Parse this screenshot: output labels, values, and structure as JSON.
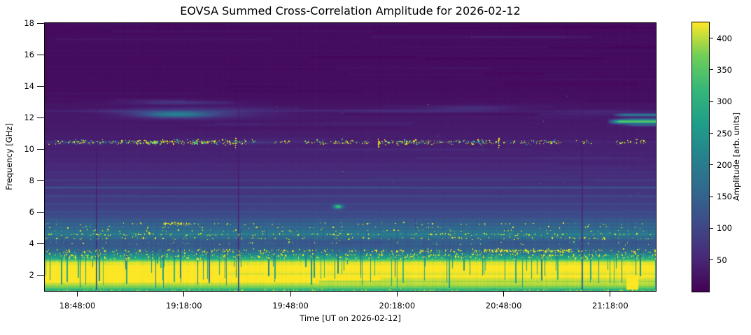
{
  "chart_data": {
    "type": "heatmap",
    "title": "EOVSA Summed Cross-Correlation Amplitude for 2026-02-12",
    "xlabel": "Time [UT on 2026-02-12]",
    "ylabel": "Frequency [GHz]",
    "x_axis": {
      "start": "18:38:50",
      "end": "21:30:50",
      "tick_labels": [
        "18:48:00",
        "19:18:00",
        "19:48:00",
        "20:18:00",
        "20:48:00",
        "21:18:00"
      ]
    },
    "y_axis": {
      "min": 1,
      "max": 18,
      "ticks": [
        2,
        4,
        6,
        8,
        10,
        12,
        14,
        16,
        18
      ]
    },
    "colorbar": {
      "label": "Amplitude [arb. units]",
      "vmin": 0,
      "vmax": 425,
      "ticks": [
        50,
        100,
        150,
        200,
        250,
        300,
        350,
        400
      ],
      "colormap": "viridis",
      "stops": [
        [
          0,
          "#440154"
        ],
        [
          0.125,
          "#482878"
        ],
        [
          0.25,
          "#3e4a89"
        ],
        [
          0.375,
          "#31688e"
        ],
        [
          0.5,
          "#26828e"
        ],
        [
          0.625,
          "#1f9e89"
        ],
        [
          0.75,
          "#35b779"
        ],
        [
          0.875,
          "#6ece58"
        ],
        [
          1,
          "#fde725"
        ]
      ]
    },
    "spectrogram": {
      "seed": 1234,
      "dot_seed": 42,
      "freq_profile": [
        [
          18,
          15
        ],
        [
          14,
          17
        ],
        [
          13.3,
          20
        ],
        [
          12.8,
          26
        ],
        [
          12.3,
          30
        ],
        [
          11.8,
          32
        ],
        [
          11.2,
          35
        ],
        [
          10.6,
          40
        ],
        [
          10,
          44
        ],
        [
          9.4,
          48
        ],
        [
          8.8,
          53
        ],
        [
          8.3,
          58
        ],
        [
          7.9,
          64
        ],
        [
          7.5,
          70
        ],
        [
          7.1,
          78
        ],
        [
          6.7,
          85
        ],
        [
          6.3,
          93
        ],
        [
          5.95,
          103
        ],
        [
          5.65,
          113
        ],
        [
          5.4,
          124
        ],
        [
          5.15,
          142
        ],
        [
          4.9,
          160
        ],
        [
          4.7,
          175
        ],
        [
          4.55,
          185
        ],
        [
          4.45,
          165
        ],
        [
          4.3,
          142
        ],
        [
          4.1,
          130
        ],
        [
          3.95,
          128
        ],
        [
          3.8,
          133
        ],
        [
          3.65,
          148
        ],
        [
          3.5,
          175
        ],
        [
          3.38,
          205
        ],
        [
          3.25,
          235
        ],
        [
          3.1,
          275
        ],
        [
          2.98,
          330
        ],
        [
          2.9,
          380
        ],
        [
          2.8,
          418
        ],
        [
          2.6,
          428
        ],
        [
          1.35,
          428
        ],
        [
          1.2,
          405
        ],
        [
          1.08,
          385
        ],
        [
          1,
          370
        ]
      ],
      "noise": {
        "row": [
          [
            6,
            2.5
          ],
          [
            4.6,
            5
          ],
          [
            3.8,
            6
          ],
          [
            3.3,
            9
          ],
          [
            2.95,
            13
          ],
          [
            2.6,
            10
          ],
          [
            0,
            3
          ]
        ],
        "pix": [
          [
            6,
            2.5
          ],
          [
            3.0,
            5
          ],
          [
            2.8,
            9
          ],
          [
            0,
            2
          ]
        ],
        "col": [
          [
            5.6,
            1.2
          ],
          [
            4.6,
            5
          ],
          [
            3.0,
            7
          ],
          [
            2.6,
            6
          ],
          [
            0,
            4
          ]
        ]
      },
      "row_streaks": {
        "seed": 9,
        "count": 62
      },
      "stripes": [
        {
          "f": 12.95,
          "x0": 0.17,
          "x1": 0.31,
          "amp": 14,
          "sig": 1.2
        },
        {
          "f": 12.42,
          "x0": 0.0,
          "x1": 0.74,
          "amp": 15,
          "sig": 1.0
        },
        {
          "f": 12.42,
          "x0": 0.74,
          "x1": 1.0,
          "amp": 8,
          "sig": 1.0
        },
        {
          "f": 10.45,
          "x0": 0.0,
          "x1": 1.0,
          "amp": 10,
          "sig": 0.9
        },
        {
          "f": 9.0,
          "x0": 0.0,
          "x1": 1.0,
          "amp": 8,
          "sig": 1.0
        },
        {
          "f": 8.55,
          "x0": 0.0,
          "x1": 1.0,
          "amp": 13,
          "sig": 1.0
        },
        {
          "f": 8.3,
          "x0": 0.0,
          "x1": 1.0,
          "amp": 9,
          "sig": 1.0
        },
        {
          "f": 8.02,
          "x0": 0.0,
          "x1": 1.0,
          "amp": 26,
          "sig": 1.1
        },
        {
          "f": 7.56,
          "x0": 0.0,
          "x1": 1.0,
          "amp": 52,
          "sig": 1.0
        },
        {
          "f": 7.02,
          "x0": 0.0,
          "x1": 1.0,
          "amp": 26,
          "sig": 1.0
        },
        {
          "f": 6.52,
          "x0": 0.0,
          "x1": 1.0,
          "amp": 16,
          "sig": 1.0
        },
        {
          "f": 6.02,
          "x0": 0.0,
          "x1": 1.0,
          "amp": 13,
          "sig": 1.0
        },
        {
          "f": 5.52,
          "x0": 0.0,
          "x1": 1.0,
          "amp": 22,
          "sig": 1.0
        },
        {
          "f": 5.28,
          "x0": 0.0,
          "x1": 1.0,
          "amp": 18,
          "sig": 0.9
        },
        {
          "f": 5.05,
          "x0": 0.0,
          "x1": 1.0,
          "amp": 20,
          "sig": 0.9
        },
        {
          "f": 4.82,
          "x0": 0.0,
          "x1": 1.0,
          "amp": 22,
          "sig": 0.9
        },
        {
          "f": 4.6,
          "x0": 0.0,
          "x1": 1.0,
          "amp": 30,
          "sig": 1.0
        },
        {
          "f": 4.33,
          "x0": 0.0,
          "x1": 1.0,
          "amp": 18,
          "sig": 0.9
        },
        {
          "f": 3.9,
          "x0": 0.0,
          "x1": 1.0,
          "amp": 10,
          "sig": 0.9
        },
        {
          "f": 2.1,
          "x0": 0.3,
          "x1": 1.0,
          "amp": -18,
          "sig": 1.4
        },
        {
          "f": 1.75,
          "x0": 0.55,
          "x1": 1.0,
          "amp": -25,
          "sig": 1.4
        },
        {
          "f": 1.6,
          "x0": 0.45,
          "x1": 1.0,
          "amp": -35,
          "sig": 1.2
        },
        {
          "f": 1.44,
          "x0": 0.0,
          "x1": 1.0,
          "amp": -28,
          "sig": 1.3
        },
        {
          "f": 1.3,
          "x0": 0.0,
          "x1": 1.0,
          "amp": -38,
          "sig": 1.3
        },
        {
          "f": 1.14,
          "x0": 0.0,
          "x1": 1.0,
          "amp": -45,
          "sig": 1.4
        },
        {
          "f": 1.04,
          "x0": 0.0,
          "x1": 1.0,
          "amp": -55,
          "sig": 1.5
        }
      ],
      "blobs": [
        {
          "x": 0.213,
          "f": 12.2,
          "rx": 0.04,
          "rf": 0.14,
          "amp": 150
        },
        {
          "x": 0.26,
          "f": 12.3,
          "rx": 0.07,
          "rf": 0.22,
          "amp": 45
        },
        {
          "x": 0.21,
          "f": 12.97,
          "rx": 0.055,
          "rf": 0.1,
          "amp": 40
        },
        {
          "x": 0.14,
          "f": 12.4,
          "rx": 0.05,
          "rf": 0.1,
          "amp": 25
        },
        {
          "x": 0.7,
          "f": 12.6,
          "rx": 0.045,
          "rf": 0.1,
          "amp": 35
        },
        {
          "x": 0.6,
          "f": 12.42,
          "rx": 0.08,
          "rf": 0.1,
          "amp": 18
        },
        {
          "x": 0.91,
          "f": 12.35,
          "rx": 0.06,
          "rf": 0.1,
          "amp": 20
        },
        {
          "x": 0.48,
          "f": 6.35,
          "rx": 0.005,
          "rf": 0.09,
          "amp": 260
        },
        {
          "x": 0.065,
          "f": 10.43,
          "rx": 0.045,
          "rf": 0.07,
          "amp": 40
        },
        {
          "x": 0.33,
          "f": 10.4,
          "rx": 0.035,
          "rf": 0.06,
          "amp": 35
        }
      ],
      "right_streaks": [
        {
          "f": 12.17,
          "x0": 0.928,
          "rf": 0.06,
          "amp": 170
        },
        {
          "f": 11.92,
          "x0": 0.94,
          "rf": 0.05,
          "amp": 60
        },
        {
          "f": 11.75,
          "x0": 0.92,
          "rf": 0.09,
          "amp": 330
        },
        {
          "f": 11.52,
          "x0": 0.945,
          "rf": 0.05,
          "amp": 100
        }
      ],
      "cal_lines": [
        {
          "x": 0.0836
        },
        {
          "x": 0.316
        },
        {
          "x": 0.8786
        }
      ],
      "upper_dark_ticks": [
        {
          "x": 0.52,
          "f0": 14.2,
          "f1": 13.3,
          "s": 0.3
        },
        {
          "x": 0.606,
          "f0": 5.62,
          "f1": 5.0,
          "s": 0.45
        },
        {
          "x": 0.538,
          "f0": 10.7,
          "f1": 10.15,
          "s": 0.35
        }
      ],
      "bottom_ticks": {
        "seed": 77,
        "count": 110,
        "teal_amp": 110,
        "kinds": [
          {
            "p": 0.55,
            "ft": [
              3.6,
              4.3
            ],
            "fb": [
              1.5,
              2.4
            ]
          },
          {
            "p": 0.2,
            "ft": [
              4.6,
              5.3
            ],
            "fb": [
              4.0,
              4.4
            ]
          },
          {
            "p": 0.15,
            "ft": [
              4.2,
              4.8
            ],
            "fb": [
              1.2,
              1.6
            ]
          },
          {
            "p": 0.1,
            "ft": [
              3.2,
              3.6
            ],
            "fb": [
              2.4,
              2.8
            ]
          }
        ],
        "extra": [
          {
            "x": 0.9985,
            "ft": 5.0,
            "fb": 1.1,
            "s": 0.5
          }
        ]
      },
      "bottom_block": {
        "x0": 0.952,
        "x1": 0.97,
        "f0": 1.12,
        "f1": 2.0,
        "amp": 438
      },
      "speckle_rows": [
        {
          "f": 10.45,
          "sig": 2.2,
          "palette": "rfi",
          "segments": [
            [
              0.005,
              0.09,
              45
            ],
            [
              0.09,
              0.185,
              80
            ],
            [
              0.16,
              0.25,
              90
            ],
            [
              0.24,
              0.33,
              90
            ],
            [
              0.335,
              0.4,
              18
            ],
            [
              0.425,
              0.475,
              35
            ],
            [
              0.475,
              0.53,
              45
            ],
            [
              0.545,
              0.63,
              100
            ],
            [
              0.63,
              0.7,
              45
            ],
            [
              0.7,
              0.745,
              40
            ],
            [
              0.75,
              0.8,
              25
            ],
            [
              0.805,
              0.845,
              40
            ],
            [
              0.87,
              0.895,
              10
            ],
            [
              0.935,
              0.985,
              30
            ]
          ]
        },
        {
          "f": 5.27,
          "sig": 1.2,
          "palette": "low",
          "segments": [
            [
              0.0,
              1.0,
              70
            ],
            [
              0.195,
              0.245,
              40
            ]
          ]
        },
        {
          "f": 5.05,
          "sig": 1.0,
          "palette": "low",
          "segments": [
            [
              0.0,
              1.0,
              45
            ]
          ]
        },
        {
          "f": 4.83,
          "sig": 1.0,
          "palette": "low",
          "segments": [
            [
              0.0,
              1.0,
              60
            ]
          ]
        },
        {
          "f": 4.6,
          "sig": 1.2,
          "palette": "low",
          "segments": [
            [
              0.0,
              1.0,
              170
            ]
          ]
        },
        {
          "f": 4.35,
          "sig": 1.2,
          "palette": "low",
          "segments": [
            [
              0.0,
              1.0,
              130
            ]
          ]
        },
        {
          "f": 4.05,
          "sig": 1.5,
          "palette": "lowdim",
          "segments": [
            [
              0.0,
              1.0,
              60
            ]
          ]
        },
        {
          "f": 3.55,
          "sig": 1.6,
          "palette": "low",
          "segments": [
            [
              0.0,
              1.0,
              260
            ],
            [
              0.7,
              0.86,
              160
            ]
          ]
        },
        {
          "f": 3.3,
          "sig": 1.6,
          "palette": "low",
          "segments": [
            [
              0.0,
              1.0,
              260
            ]
          ]
        },
        {
          "f": 3.12,
          "sig": 1.4,
          "palette": "low",
          "segments": [
            [
              0.0,
              1.0,
              220
            ]
          ]
        },
        {
          "f": 1.06,
          "sig": 1.0,
          "palette": "lowdim",
          "segments": [
            [
              0.0,
              1.0,
              250
            ]
          ]
        }
      ],
      "rfi_columns": [
        {
          "x": 0.312,
          "f0": 10.1,
          "f1": 10.75,
          "n": 5
        },
        {
          "x": 0.545,
          "f0": 10.15,
          "f1": 10.7,
          "n": 5
        },
        {
          "x": 0.742,
          "f0": 10.1,
          "f1": 10.8,
          "n": 6
        }
      ],
      "scatter_dots": {
        "count": 26,
        "f0": 6.2,
        "f1": 13.5,
        "colors": [
          "#2a788e",
          "#46c06f",
          "#d5e21a",
          "#31688e"
        ]
      },
      "palettes": {
        "rfi": [
          [
            "#f6e61f",
            0.38
          ],
          [
            "#d8e219",
            0.15
          ],
          [
            "#8bd646",
            0.12
          ],
          [
            "#2fb47c",
            0.12
          ],
          [
            "#2ec9c0",
            0.13
          ],
          [
            "#3a5f8d",
            0.1
          ]
        ],
        "low": [
          [
            "#f6e61f",
            0.55
          ],
          [
            "#dde318",
            0.2
          ],
          [
            "#a5db36",
            0.12
          ],
          [
            "#56c667",
            0.08
          ],
          [
            "#2a9d8f",
            0.05
          ]
        ],
        "lowdim": [
          [
            "#c8e020",
            0.4
          ],
          [
            "#7ad151",
            0.3
          ],
          [
            "#2a9d8f",
            0.3
          ]
        ]
      }
    }
  }
}
